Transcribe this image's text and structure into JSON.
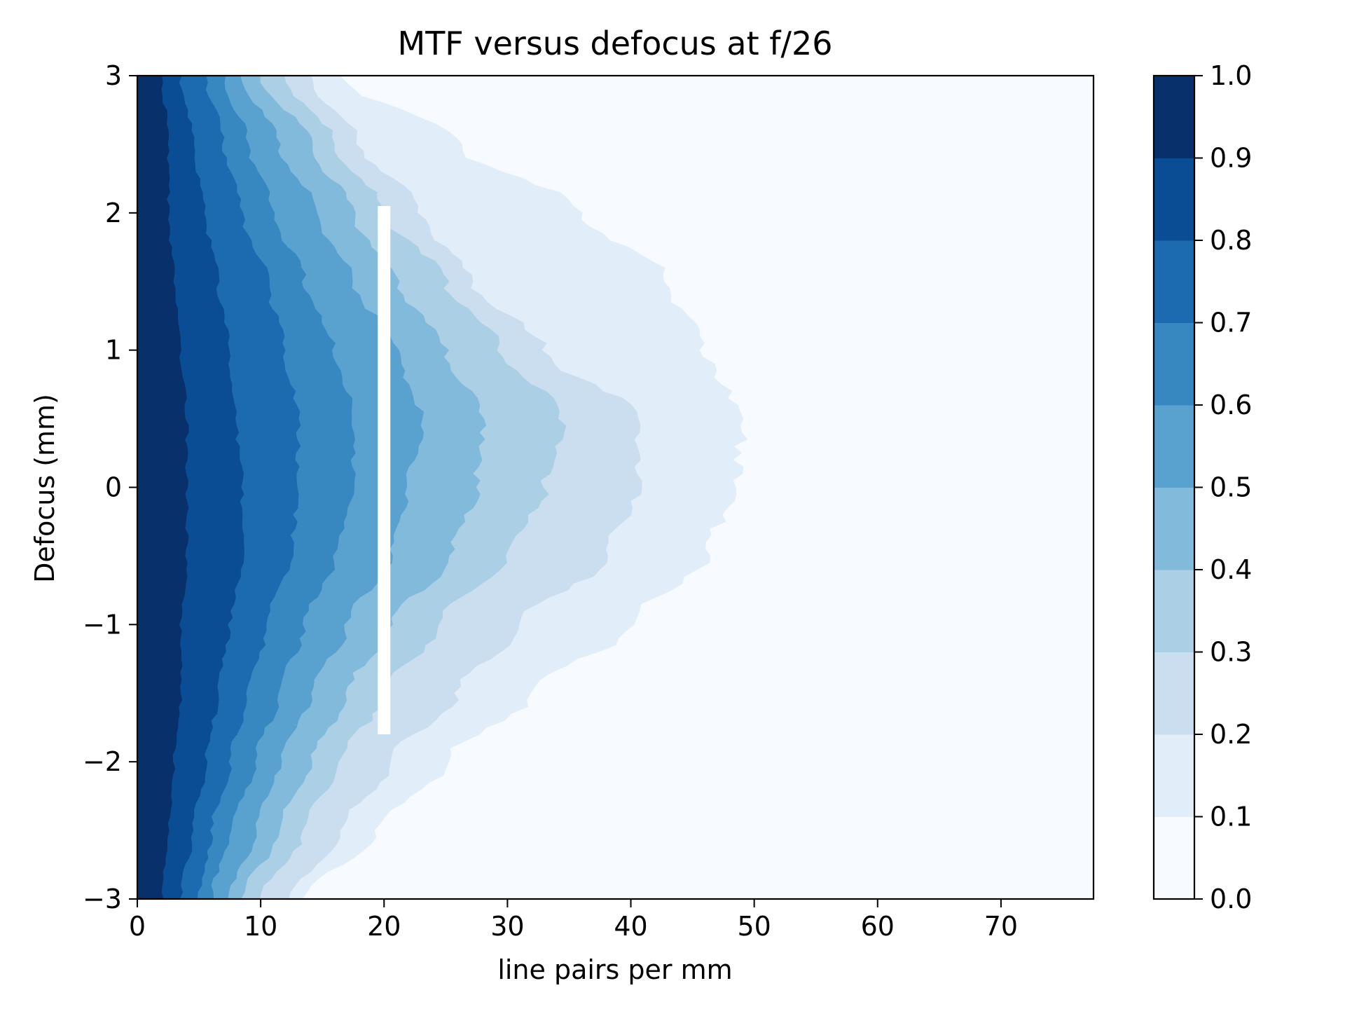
{
  "chart_data": {
    "type": "heatmap",
    "subtype": "filled-contour",
    "title": "MTF versus defocus at f/26",
    "xlabel": "line pairs per mm",
    "ylabel": "Defocus (mm)",
    "xlim": [
      0,
      77.5
    ],
    "ylim": [
      -3,
      3
    ],
    "x_ticks": [
      0,
      10,
      20,
      30,
      40,
      50,
      60,
      70
    ],
    "x_tick_labels": [
      "0",
      "10",
      "20",
      "30",
      "40",
      "50",
      "60",
      "70"
    ],
    "y_ticks": [
      -3,
      -2,
      -1,
      0,
      1,
      2,
      3
    ],
    "y_tick_labels": [
      "−3",
      "−2",
      "−1",
      "0",
      "1",
      "2",
      "3"
    ],
    "colormap": "Blues",
    "colorbar": {
      "levels": [
        0.0,
        0.1,
        0.2,
        0.3,
        0.4,
        0.5,
        0.6,
        0.7,
        0.8,
        0.9,
        1.0
      ],
      "tick_labels": [
        "0.0",
        "0.1",
        "0.2",
        "0.3",
        "0.4",
        "0.5",
        "0.6",
        "0.7",
        "0.8",
        "0.9",
        "1.0"
      ],
      "colors": [
        "#f7fbff",
        "#e1edf8",
        "#cadef0",
        "#abcfe5",
        "#82badb",
        "#59a1cf",
        "#3787c0",
        "#1c6aaf",
        "#0b4d94",
        "#08306b"
      ]
    },
    "contour_profile": {
      "description_defocus_mm": [
        -3,
        -2.5,
        -2,
        -1.5,
        -1,
        -0.5,
        0,
        0.5,
        1,
        1.5,
        2,
        2.5,
        3
      ],
      "level_0.1_boundary_lpmm": [
        13.5,
        19.5,
        25,
        32,
        40,
        46,
        48.5,
        49,
        46,
        43,
        36,
        26,
        16.5
      ],
      "level_0.2_boundary_lpmm": [
        12.5,
        16.5,
        20.5,
        26,
        31,
        38,
        40.5,
        40.5,
        33,
        27,
        23,
        18,
        14
      ],
      "level_0.3_boundary_lpmm": [
        10,
        13.5,
        16.5,
        20,
        24.5,
        30,
        33,
        34.5,
        29.5,
        25,
        20,
        16,
        12
      ],
      "level_0.4_boundary_lpmm": [
        8.5,
        11.5,
        14,
        17,
        20.5,
        25.5,
        27.5,
        28,
        25,
        21,
        17.5,
        14,
        10
      ],
      "level_0.5_boundary_lpmm": [
        7.5,
        9.5,
        11.5,
        14,
        17,
        20.5,
        22,
        23,
        21,
        17.5,
        14.5,
        11.5,
        8.5
      ],
      "level_0.6_boundary_lpmm": [
        6,
        7.5,
        9.5,
        11.5,
        13.5,
        16,
        17.5,
        17.5,
        16,
        13.5,
        11,
        9,
        7
      ],
      "level_0.7_boundary_lpmm": [
        5,
        6,
        7.5,
        9,
        10.5,
        12.5,
        13,
        13,
        12,
        10.5,
        8.5,
        7,
        5.5
      ],
      "level_0.8_boundary_lpmm": [
        3.5,
        4.5,
        5.5,
        6.5,
        7.5,
        8.5,
        8.5,
        8,
        7.5,
        6.5,
        5.5,
        4.5,
        3.5
      ],
      "level_0.9_boundary_lpmm": [
        2,
        2.5,
        3,
        3.5,
        3.5,
        4,
        4,
        4,
        3.5,
        3,
        2.5,
        2.5,
        2
      ]
    },
    "annotation_bar": {
      "x_lpmm": 20,
      "y_range_mm": [
        -1.8,
        2.05
      ],
      "color": "#ffffff"
    },
    "grid": false
  }
}
